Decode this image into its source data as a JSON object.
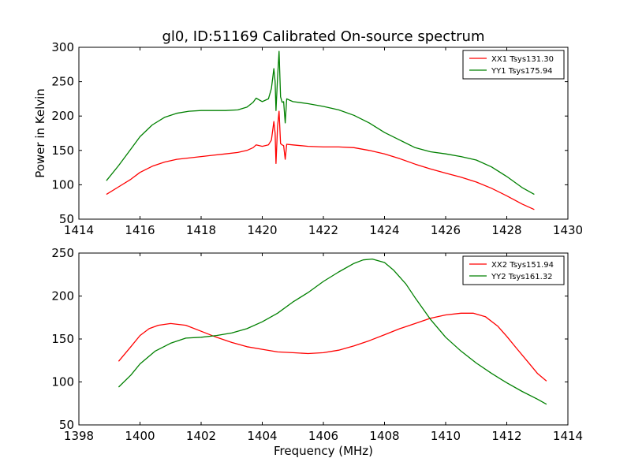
{
  "chart_data": [
    {
      "type": "line",
      "title": "gl0, ID:51169 Calibrated On-source spectrum",
      "xlabel": "",
      "ylabel": "Power in Kelvin",
      "xlim": [
        1414,
        1430
      ],
      "ylim": [
        50,
        300
      ],
      "xticks": [
        "1414",
        "1416",
        "1418",
        "1420",
        "1422",
        "1424",
        "1426",
        "1428",
        "1430"
      ],
      "yticks": [
        "50",
        "100",
        "150",
        "200",
        "250",
        "300"
      ],
      "legend_position": "top-right",
      "grid": false,
      "series": [
        {
          "name": "XX1 Tsys131.30",
          "color": "#ff0000",
          "x": [
            1414.9,
            1415.3,
            1415.7,
            1416.0,
            1416.4,
            1416.8,
            1417.2,
            1417.6,
            1418.0,
            1418.4,
            1418.8,
            1419.2,
            1419.5,
            1419.7,
            1419.8,
            1420.0,
            1420.2,
            1420.3,
            1420.38,
            1420.42,
            1420.45,
            1420.5,
            1420.55,
            1420.6,
            1420.65,
            1420.7,
            1420.75,
            1420.8,
            1421.0,
            1421.5,
            1422.0,
            1422.5,
            1423.0,
            1423.5,
            1424.0,
            1424.5,
            1425.0,
            1425.5,
            1426.0,
            1426.5,
            1427.0,
            1427.5,
            1428.0,
            1428.5,
            1428.9
          ],
          "y": [
            86,
            97,
            108,
            118,
            127,
            133,
            137,
            139,
            141,
            143,
            145,
            147,
            150,
            154,
            158,
            156,
            158,
            165,
            192,
            175,
            131,
            185,
            207,
            160,
            158,
            157,
            137,
            159,
            158,
            156,
            155,
            155,
            154,
            150,
            145,
            138,
            130,
            123,
            117,
            111,
            104,
            95,
            84,
            72,
            64
          ]
        },
        {
          "name": "YY1 Tsys175.94",
          "color": "#008000",
          "x": [
            1414.9,
            1415.3,
            1415.7,
            1416.0,
            1416.4,
            1416.8,
            1417.2,
            1417.6,
            1418.0,
            1418.4,
            1418.8,
            1419.2,
            1419.5,
            1419.7,
            1419.8,
            1420.0,
            1420.2,
            1420.3,
            1420.38,
            1420.42,
            1420.45,
            1420.5,
            1420.55,
            1420.6,
            1420.65,
            1420.7,
            1420.75,
            1420.8,
            1421.0,
            1421.5,
            1422.0,
            1422.5,
            1423.0,
            1423.5,
            1424.0,
            1424.5,
            1425.0,
            1425.5,
            1426.0,
            1426.5,
            1427.0,
            1427.5,
            1428.0,
            1428.5,
            1428.9
          ],
          "y": [
            106,
            128,
            152,
            170,
            187,
            198,
            204,
            207,
            208,
            208,
            208,
            209,
            213,
            220,
            226,
            221,
            225,
            240,
            269,
            250,
            208,
            256,
            294,
            228,
            220,
            221,
            190,
            225,
            221,
            218,
            214,
            209,
            201,
            190,
            176,
            165,
            154,
            148,
            145,
            141,
            136,
            126,
            112,
            96,
            86
          ]
        }
      ]
    },
    {
      "type": "line",
      "title": "",
      "xlabel": "Frequency (MHz)",
      "ylabel": "",
      "xlim": [
        1398,
        1414
      ],
      "ylim": [
        50,
        250
      ],
      "xticks": [
        "1398",
        "1400",
        "1402",
        "1404",
        "1406",
        "1408",
        "1410",
        "1412",
        "1414"
      ],
      "yticks": [
        "50",
        "100",
        "150",
        "200",
        "250"
      ],
      "legend_position": "top-right",
      "grid": false,
      "series": [
        {
          "name": "XX2 Tsys151.94",
          "color": "#ff0000",
          "x": [
            1399.3,
            1399.7,
            1400.0,
            1400.3,
            1400.6,
            1401.0,
            1401.5,
            1402.0,
            1402.5,
            1403.0,
            1403.5,
            1404.0,
            1404.5,
            1405.0,
            1405.5,
            1406.0,
            1406.5,
            1407.0,
            1407.5,
            1408.0,
            1408.5,
            1409.0,
            1409.5,
            1410.0,
            1410.5,
            1410.9,
            1411.3,
            1411.7,
            1412.0,
            1412.3,
            1412.7,
            1413.0,
            1413.3
          ],
          "y": [
            124,
            141,
            154,
            162,
            166,
            168,
            166,
            159,
            152,
            146,
            141,
            138,
            135,
            134,
            133,
            134,
            137,
            142,
            148,
            155,
            162,
            168,
            174,
            178,
            180,
            180,
            176,
            165,
            153,
            140,
            123,
            110,
            101
          ]
        },
        {
          "name": "YY2 Tsys161.32",
          "color": "#008000",
          "x": [
            1399.3,
            1399.7,
            1400.0,
            1400.5,
            1401.0,
            1401.5,
            1402.0,
            1402.5,
            1403.0,
            1403.5,
            1404.0,
            1404.5,
            1405.0,
            1405.5,
            1406.0,
            1406.5,
            1407.0,
            1407.3,
            1407.6,
            1408.0,
            1408.3,
            1408.7,
            1409.0,
            1409.5,
            1410.0,
            1410.5,
            1411.0,
            1411.5,
            1412.0,
            1412.5,
            1413.0,
            1413.3
          ],
          "y": [
            94,
            108,
            121,
            136,
            145,
            151,
            152,
            154,
            157,
            162,
            170,
            180,
            193,
            204,
            217,
            228,
            238,
            242,
            243,
            239,
            230,
            214,
            198,
            173,
            152,
            136,
            122,
            110,
            99,
            89,
            80,
            74
          ]
        }
      ]
    }
  ]
}
